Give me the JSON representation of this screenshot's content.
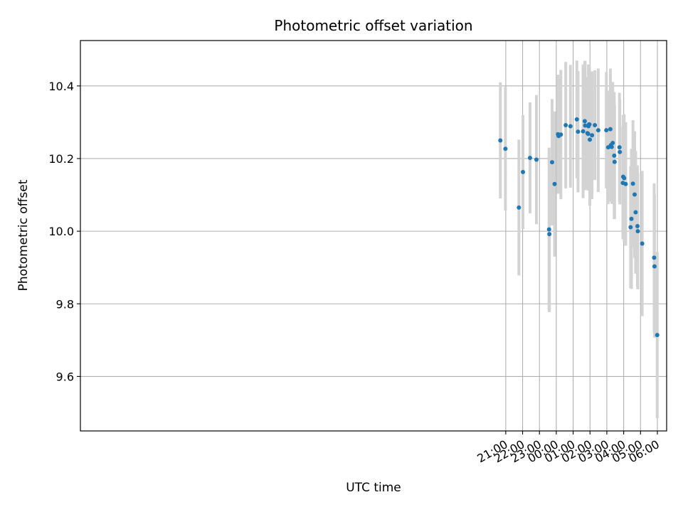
{
  "chart_data": {
    "type": "scatter",
    "title": "Photometric offset variation",
    "xlabel": "UTC time",
    "ylabel": "Photometric offset",
    "x_unit": "hours",
    "xlim": [
      -4.25,
      30.55
    ],
    "ylim": [
      9.45,
      10.525
    ],
    "x_ticks": [
      {
        "value": 21,
        "label": "21:00"
      },
      {
        "value": 22,
        "label": "22:00"
      },
      {
        "value": 23,
        "label": "23:00"
      },
      {
        "value": 24,
        "label": "00:00"
      },
      {
        "value": 25,
        "label": "01:00"
      },
      {
        "value": 26,
        "label": "02:00"
      },
      {
        "value": 27,
        "label": "03:00"
      },
      {
        "value": 28,
        "label": "04:00"
      },
      {
        "value": 29,
        "label": "05:00"
      },
      {
        "value": 30,
        "label": "06:00"
      }
    ],
    "y_ticks": [
      {
        "value": 9.6,
        "label": "9.6"
      },
      {
        "value": 9.8,
        "label": "9.8"
      },
      {
        "value": 10.0,
        "label": "10.0"
      },
      {
        "value": 10.2,
        "label": "10.2"
      },
      {
        "value": 10.4,
        "label": "10.4"
      }
    ],
    "grid": true,
    "colors": {
      "point": "#1f77b4",
      "errorbar": "#d3d3d3",
      "grid": "#b0b0b0"
    },
    "series": [
      {
        "x": [
          20.68,
          20.98,
          21.78,
          22.02,
          22.44,
          22.82,
          23.57,
          23.59,
          23.75,
          23.9,
          24.1,
          24.14,
          24.27,
          24.56,
          24.84,
          25.22,
          25.29,
          25.59,
          25.69,
          25.71,
          25.85,
          25.89,
          25.91,
          25.94,
          25.97,
          25.99,
          26.12,
          26.29,
          26.49,
          26.97,
          27.08,
          27.21,
          27.24,
          27.29,
          27.35,
          27.44,
          27.46,
          27.75,
          27.77,
          27.95,
          27.97,
          28.03,
          28.12,
          28.41,
          28.46,
          28.55,
          28.65,
          28.71,
          28.82,
          28.84,
          29.1,
          29.81,
          29.83,
          29.99
        ],
        "y": [
          10.25,
          10.227,
          10.065,
          10.163,
          10.202,
          10.197,
          10.005,
          9.992,
          10.19,
          10.13,
          10.267,
          10.262,
          10.266,
          10.292,
          10.289,
          10.308,
          10.274,
          10.275,
          10.303,
          10.291,
          10.27,
          10.268,
          10.289,
          10.294,
          10.294,
          10.252,
          10.264,
          10.292,
          10.278,
          10.278,
          10.231,
          10.281,
          10.237,
          10.232,
          10.243,
          10.208,
          10.191,
          10.231,
          10.218,
          10.133,
          10.15,
          10.146,
          10.13,
          10.011,
          10.034,
          10.131,
          10.101,
          10.052,
          10.014,
          10.0,
          9.966,
          9.927,
          9.903,
          9.714
        ],
        "err": [
          0.16,
          0.17,
          0.187,
          0.157,
          0.153,
          0.178,
          0.225,
          0.215,
          0.174,
          0.2,
          0.164,
          0.158,
          0.178,
          0.174,
          0.169,
          0.162,
          0.167,
          0.184,
          0.166,
          0.178,
          0.154,
          0.156,
          0.17,
          0.163,
          0.16,
          0.182,
          0.176,
          0.151,
          0.17,
          0.16,
          0.156,
          0.167,
          0.155,
          0.156,
          0.168,
          0.175,
          0.157,
          0.15,
          0.144,
          0.155,
          0.17,
          0.176,
          0.17,
          0.168,
          0.193,
          0.175,
          0.174,
          0.169,
          0.167,
          0.16,
          0.2,
          0.205,
          0.196,
          0.229
        ]
      }
    ]
  }
}
